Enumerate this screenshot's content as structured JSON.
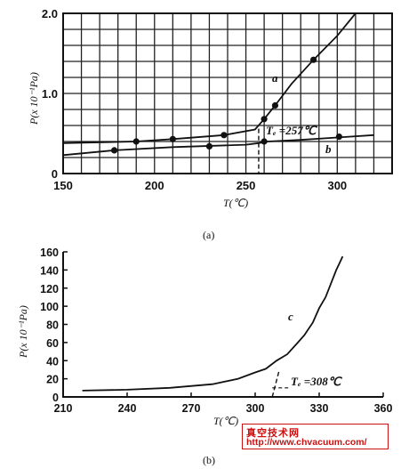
{
  "chart_data": [
    {
      "type": "line",
      "caption": "(a)",
      "xlabel": "T(℃)",
      "ylabel": "P(x 10⁻¹Pa)",
      "xlim": [
        150,
        330
      ],
      "ylim": [
        0,
        2.0
      ],
      "x_ticks": [
        "150",
        "200",
        "250",
        "300"
      ],
      "y_ticks": [
        "0",
        "1.0",
        "2.0"
      ],
      "grid": true,
      "series": [
        {
          "name": "a",
          "points": [
            [
              150,
              0.38
            ],
            [
              190,
              0.4
            ],
            [
              210,
              0.43
            ],
            [
              238,
              0.48
            ],
            [
              255,
              0.55
            ],
            [
              260,
              0.68
            ],
            [
              266,
              0.85
            ],
            [
              275,
              1.12
            ],
            [
              287,
              1.42
            ],
            [
              300,
              1.72
            ],
            [
              310,
              2.0
            ]
          ],
          "markers": [
            [
              190,
              0.4
            ],
            [
              210,
              0.43
            ],
            [
              238,
              0.48
            ],
            [
              260,
              0.68
            ],
            [
              266,
              0.85
            ],
            [
              287,
              1.42
            ]
          ]
        },
        {
          "name": "b",
          "points": [
            [
              150,
              0.23
            ],
            [
              178,
              0.29
            ],
            [
              210,
              0.33
            ],
            [
              250,
              0.36
            ],
            [
              257,
              0.38
            ],
            [
              262,
              0.4
            ],
            [
              280,
              0.42
            ],
            [
              300,
              0.45
            ],
            [
              320,
              0.48
            ]
          ],
          "markers": [
            [
              178,
              0.29
            ],
            [
              230,
              0.34
            ],
            [
              260,
              0.4
            ],
            [
              301,
              0.46
            ]
          ]
        }
      ],
      "annotations": [
        {
          "text": "Tₑ =257℃",
          "x": 257
        }
      ]
    },
    {
      "type": "line",
      "caption": "(b)",
      "xlabel": "T(℃)",
      "ylabel": "P(x 10⁻¹Pa)",
      "xlim": [
        210,
        360
      ],
      "ylim": [
        0,
        160
      ],
      "x_ticks": [
        "210",
        "240",
        "270",
        "300",
        "330",
        "360"
      ],
      "y_ticks": [
        "0",
        "20",
        "40",
        "60",
        "80",
        "100",
        "120",
        "140",
        "160"
      ],
      "grid": false,
      "series": [
        {
          "name": "c",
          "points": [
            [
              219,
              7
            ],
            [
              240,
              8
            ],
            [
              260,
              10
            ],
            [
              280,
              14
            ],
            [
              292,
              20
            ],
            [
              300,
              27
            ],
            [
              305,
              31
            ],
            [
              310,
              40
            ],
            [
              315,
              47
            ],
            [
              320,
              60
            ],
            [
              323,
              68
            ],
            [
              327,
              82
            ],
            [
              330,
              98
            ],
            [
              333,
              110
            ],
            [
              336,
              128
            ],
            [
              338,
              140
            ],
            [
              341,
              155
            ]
          ]
        }
      ],
      "annotations": [
        {
          "text": "Tₑ =308℃",
          "x": 308
        }
      ]
    }
  ],
  "watermark": {
    "title": "真空技术网",
    "url": "http://www.chvacuum.com/"
  }
}
